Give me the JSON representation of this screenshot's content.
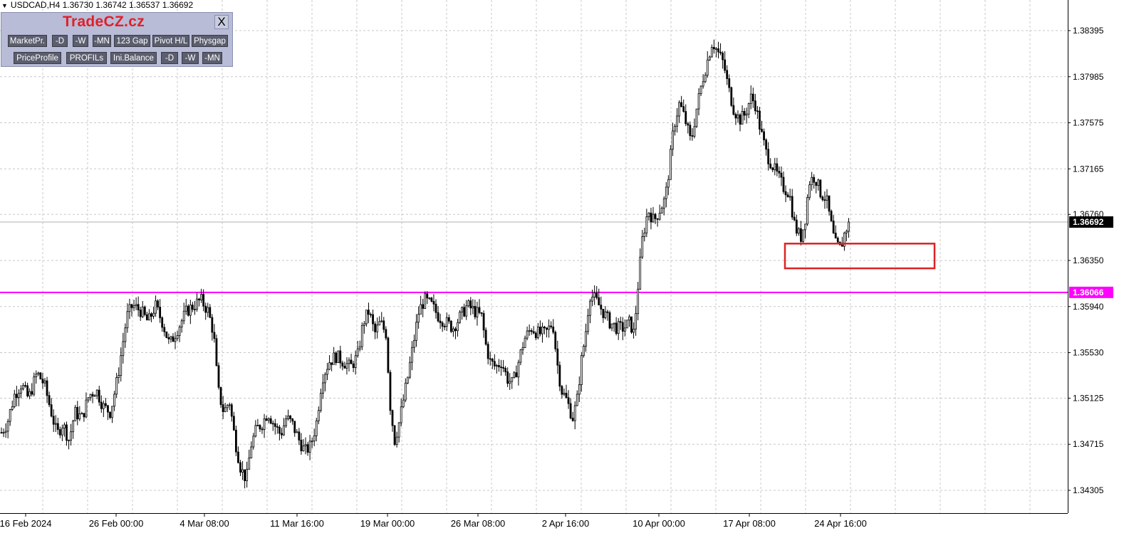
{
  "symbol": {
    "marker": "▼",
    "text": "USDCAD,H4  1.36730 1.36742 1.36537 1.36692"
  },
  "panel": {
    "title": "TradeCZ.cz",
    "close_label": "X",
    "row1": [
      "MarketPr.",
      "-D",
      "-W",
      "-MN",
      "123 Gap",
      "Pivot H/L",
      "Physgap"
    ],
    "row2": [
      "PriceProfile",
      "PROFILs",
      "Ini.Balance",
      "-D",
      "-W",
      "-MN"
    ]
  },
  "chart_data": {
    "type": "candlestick",
    "symbol": "USDCAD",
    "timeframe": "H4",
    "ohlc_last": {
      "open": 1.3673,
      "high": 1.36742,
      "low": 1.36537,
      "close": 1.36692
    },
    "y_axis_ticks": [
      "1.38395",
      "1.37985",
      "1.37575",
      "1.37165",
      "1.36760",
      "1.36350",
      "1.35940",
      "1.35530",
      "1.35125",
      "1.34715",
      "1.34305"
    ],
    "x_axis_ticks": [
      "16 Feb 2024",
      "26 Feb 00:00",
      "4 Mar 08:00",
      "11 Mar 16:00",
      "19 Mar 00:00",
      "26 Mar 08:00",
      "2 Apr 16:00",
      "10 Apr 00:00",
      "17 Apr 08:00",
      "24 Apr 16:00"
    ],
    "ylim": [
      1.3415,
      1.3885
    ],
    "grid": true,
    "current_price": {
      "value": 1.36692,
      "label": "1.36692",
      "color": "#000000"
    },
    "horizontal_line": {
      "value": 1.36066,
      "label": "1.36066",
      "color": "#ff00ff"
    },
    "highlight_box": {
      "price_top": 1.365,
      "price_bottom": 1.3628,
      "color": "#dd2222"
    },
    "path": [
      [
        0,
        1.348
      ],
      [
        10,
        1.349
      ],
      [
        20,
        1.3515
      ],
      [
        30,
        1.3525
      ],
      [
        40,
        1.3512
      ],
      [
        52,
        1.3535
      ],
      [
        62,
        1.3525
      ],
      [
        72,
        1.35
      ],
      [
        80,
        1.348
      ],
      [
        88,
        1.349
      ],
      [
        97,
        1.3475
      ],
      [
        105,
        1.35
      ],
      [
        115,
        1.3495
      ],
      [
        125,
        1.3515
      ],
      [
        135,
        1.352
      ],
      [
        145,
        1.3505
      ],
      [
        155,
        1.35
      ],
      [
        165,
        1.353
      ],
      [
        172,
        1.356
      ],
      [
        178,
        1.3585
      ],
      [
        186,
        1.3595
      ],
      [
        198,
        1.359
      ],
      [
        208,
        1.358
      ],
      [
        218,
        1.3595
      ],
      [
        228,
        1.358
      ],
      [
        238,
        1.356
      ],
      [
        250,
        1.3575
      ],
      [
        262,
        1.359
      ],
      [
        272,
        1.3595
      ],
      [
        282,
        1.36
      ],
      [
        292,
        1.359
      ],
      [
        300,
        1.357
      ],
      [
        306,
        1.352
      ],
      [
        314,
        1.35
      ],
      [
        322,
        1.351
      ],
      [
        330,
        1.3475
      ],
      [
        338,
        1.345
      ],
      [
        346,
        1.344
      ],
      [
        352,
        1.347
      ],
      [
        360,
        1.3485
      ],
      [
        368,
        1.349
      ],
      [
        376,
        1.35
      ],
      [
        384,
        1.349
      ],
      [
        394,
        1.348
      ],
      [
        402,
        1.3495
      ],
      [
        410,
        1.349
      ],
      [
        420,
        1.3475
      ],
      [
        428,
        1.3465
      ],
      [
        436,
        1.347
      ],
      [
        444,
        1.349
      ],
      [
        452,
        1.353
      ],
      [
        462,
        1.3545
      ],
      [
        472,
        1.355
      ],
      [
        482,
        1.3545
      ],
      [
        492,
        1.354
      ],
      [
        502,
        1.355
      ],
      [
        510,
        1.358
      ],
      [
        518,
        1.359
      ],
      [
        526,
        1.357
      ],
      [
        534,
        1.358
      ],
      [
        542,
        1.357
      ],
      [
        548,
        1.3505
      ],
      [
        554,
        1.3475
      ],
      [
        560,
        1.349
      ],
      [
        566,
        1.351
      ],
      [
        572,
        1.353
      ],
      [
        580,
        1.356
      ],
      [
        588,
        1.359
      ],
      [
        596,
        1.36
      ],
      [
        606,
        1.3595
      ],
      [
        616,
        1.3585
      ],
      [
        626,
        1.358
      ],
      [
        636,
        1.3575
      ],
      [
        646,
        1.3585
      ],
      [
        656,
        1.3595
      ],
      [
        666,
        1.359
      ],
      [
        676,
        1.3585
      ],
      [
        682,
        1.356
      ],
      [
        688,
        1.3545
      ],
      [
        696,
        1.354
      ],
      [
        704,
        1.3545
      ],
      [
        712,
        1.353
      ],
      [
        720,
        1.3525
      ],
      [
        728,
        1.3545
      ],
      [
        736,
        1.3565
      ],
      [
        746,
        1.3575
      ],
      [
        756,
        1.357
      ],
      [
        766,
        1.357
      ],
      [
        776,
        1.358
      ],
      [
        782,
        1.3545
      ],
      [
        788,
        1.352
      ],
      [
        796,
        1.351
      ],
      [
        804,
        1.3495
      ],
      [
        810,
        1.351
      ],
      [
        816,
        1.3545
      ],
      [
        822,
        1.357
      ],
      [
        828,
        1.3605
      ],
      [
        836,
        1.36
      ],
      [
        846,
        1.359
      ],
      [
        856,
        1.358
      ],
      [
        866,
        1.3575
      ],
      [
        876,
        1.3575
      ],
      [
        884,
        1.358
      ],
      [
        890,
        1.357
      ],
      [
        896,
        1.3615
      ],
      [
        902,
        1.3655
      ],
      [
        910,
        1.368
      ],
      [
        918,
        1.367
      ],
      [
        926,
        1.368
      ],
      [
        934,
        1.369
      ],
      [
        940,
        1.372
      ],
      [
        946,
        1.3755
      ],
      [
        954,
        1.3775
      ],
      [
        962,
        1.376
      ],
      [
        970,
        1.374
      ],
      [
        978,
        1.377
      ],
      [
        986,
        1.3795
      ],
      [
        994,
        1.3815
      ],
      [
        1000,
        1.383
      ],
      [
        1008,
        1.382
      ],
      [
        1016,
        1.381
      ],
      [
        1022,
        1.379
      ],
      [
        1030,
        1.377
      ],
      [
        1038,
        1.376
      ],
      [
        1046,
        1.3765
      ],
      [
        1054,
        1.378
      ],
      [
        1060,
        1.3775
      ],
      [
        1068,
        1.375
      ],
      [
        1076,
        1.373
      ],
      [
        1084,
        1.372
      ],
      [
        1092,
        1.371
      ],
      [
        1100,
        1.37
      ],
      [
        1108,
        1.3695
      ],
      [
        1116,
        1.3665
      ],
      [
        1124,
        1.3655
      ],
      [
        1130,
        1.367
      ],
      [
        1136,
        1.3705
      ],
      [
        1144,
        1.371
      ],
      [
        1152,
        1.3695
      ],
      [
        1160,
        1.369
      ],
      [
        1166,
        1.367
      ],
      [
        1172,
        1.365
      ],
      [
        1180,
        1.3645
      ],
      [
        1186,
        1.366
      ],
      [
        1192,
        1.36692
      ]
    ]
  }
}
